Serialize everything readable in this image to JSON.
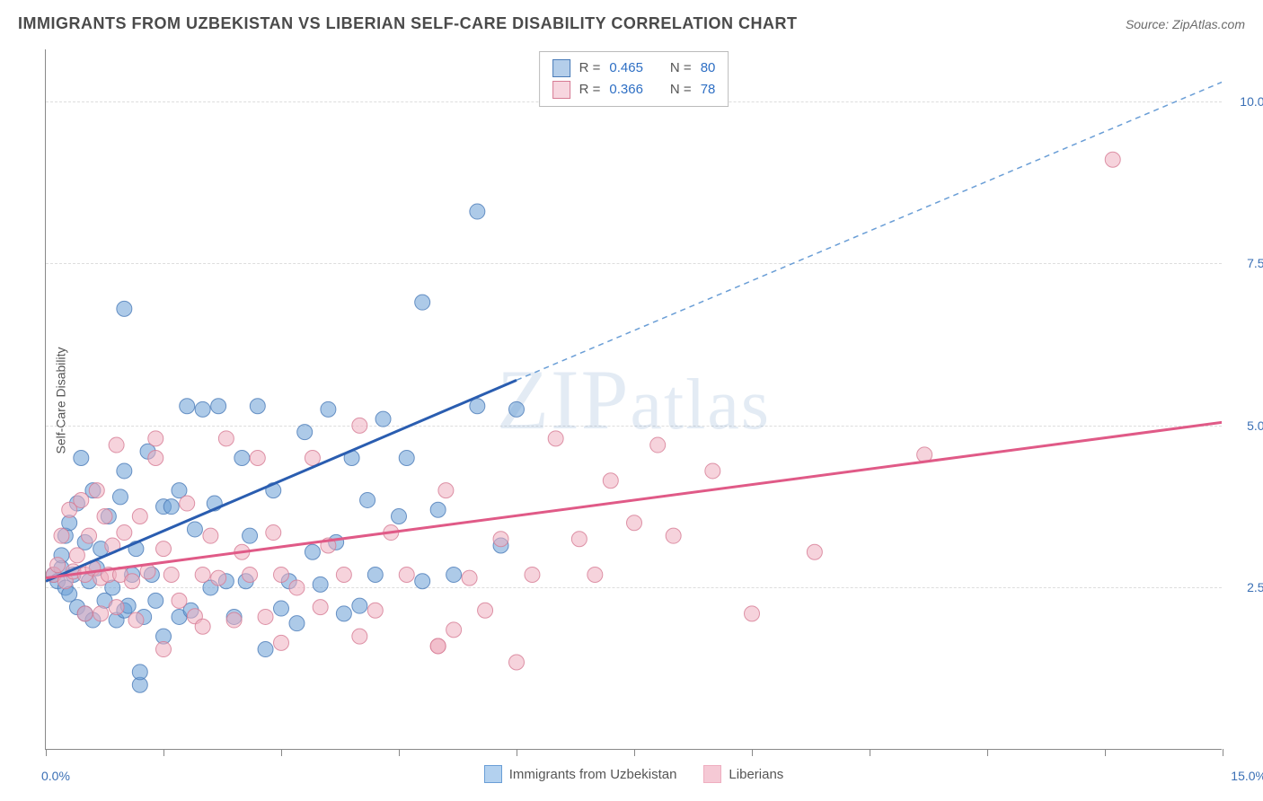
{
  "title": "IMMIGRANTS FROM UZBEKISTAN VS LIBERIAN SELF-CARE DISABILITY CORRELATION CHART",
  "source_prefix": "Source: ",
  "source_name": "ZipAtlas.com",
  "ylabel": "Self-Care Disability",
  "watermark": "ZIPatlas",
  "chart": {
    "type": "scatter",
    "xlim": [
      0,
      15
    ],
    "ylim": [
      0,
      10.8
    ],
    "xticks": [
      0,
      1.5,
      3.0,
      4.5,
      6.0,
      7.5,
      9.0,
      10.5,
      12.0,
      13.5,
      15.0
    ],
    "ytick_labels": [
      {
        "y": 2.5,
        "label": "2.5%"
      },
      {
        "y": 5.0,
        "label": "5.0%"
      },
      {
        "y": 7.5,
        "label": "7.5%"
      },
      {
        "y": 10.0,
        "label": "10.0%"
      }
    ],
    "origin_label": "0.0%",
    "xmax_label": "15.0%",
    "background_color": "#ffffff",
    "grid_color": "#dddddd",
    "marker_radius": 8.5,
    "marker_opacity": 0.55,
    "series": [
      {
        "name": "Immigrants from Uzbekistan",
        "color": "#6a9ed6",
        "stroke": "#4a7bb8",
        "R": "0.465",
        "N": "80",
        "regression": {
          "solid_from": [
            0,
            2.6
          ],
          "solid_to": [
            6.0,
            5.7
          ],
          "dash_to": [
            15.0,
            10.3
          ],
          "solid_color": "#2a5db0",
          "solid_width": 3,
          "dash_color": "#6a9ed6",
          "dash_width": 1.5
        },
        "points": [
          [
            0.1,
            2.7
          ],
          [
            0.15,
            2.6
          ],
          [
            0.2,
            2.8
          ],
          [
            0.2,
            3.0
          ],
          [
            0.25,
            2.5
          ],
          [
            0.25,
            3.3
          ],
          [
            0.3,
            2.4
          ],
          [
            0.3,
            3.5
          ],
          [
            0.35,
            2.7
          ],
          [
            0.4,
            2.2
          ],
          [
            0.4,
            3.8
          ],
          [
            0.45,
            4.5
          ],
          [
            0.5,
            2.1
          ],
          [
            0.5,
            3.2
          ],
          [
            0.55,
            2.6
          ],
          [
            0.6,
            2.0
          ],
          [
            0.6,
            4.0
          ],
          [
            0.65,
            2.8
          ],
          [
            1.0,
            6.8
          ],
          [
            0.7,
            3.1
          ],
          [
            0.75,
            2.3
          ],
          [
            0.8,
            3.6
          ],
          [
            0.85,
            2.5
          ],
          [
            0.9,
            2.0
          ],
          [
            0.95,
            3.9
          ],
          [
            1.0,
            2.15
          ],
          [
            1.0,
            4.3
          ],
          [
            1.05,
            2.22
          ],
          [
            1.1,
            2.7
          ],
          [
            1.15,
            3.1
          ],
          [
            1.2,
            1.0
          ],
          [
            1.2,
            1.2
          ],
          [
            1.25,
            2.05
          ],
          [
            1.3,
            4.6
          ],
          [
            1.35,
            2.7
          ],
          [
            1.4,
            2.3
          ],
          [
            1.5,
            3.75
          ],
          [
            1.5,
            1.75
          ],
          [
            1.6,
            3.75
          ],
          [
            1.7,
            2.05
          ],
          [
            1.7,
            4.0
          ],
          [
            1.8,
            5.3
          ],
          [
            1.85,
            2.15
          ],
          [
            1.9,
            3.4
          ],
          [
            2.0,
            5.25
          ],
          [
            2.1,
            2.5
          ],
          [
            2.15,
            3.8
          ],
          [
            2.2,
            5.3
          ],
          [
            2.3,
            2.6
          ],
          [
            2.4,
            2.05
          ],
          [
            2.5,
            4.5
          ],
          [
            2.55,
            2.6
          ],
          [
            2.6,
            3.3
          ],
          [
            2.7,
            5.3
          ],
          [
            2.8,
            1.55
          ],
          [
            2.9,
            4.0
          ],
          [
            3.0,
            2.18
          ],
          [
            3.1,
            2.6
          ],
          [
            3.2,
            1.95
          ],
          [
            3.3,
            4.9
          ],
          [
            3.4,
            3.05
          ],
          [
            3.5,
            2.55
          ],
          [
            3.6,
            5.25
          ],
          [
            3.7,
            3.2
          ],
          [
            3.8,
            2.1
          ],
          [
            3.9,
            4.5
          ],
          [
            4.0,
            2.22
          ],
          [
            4.1,
            3.85
          ],
          [
            4.2,
            2.7
          ],
          [
            4.3,
            5.1
          ],
          [
            4.5,
            3.6
          ],
          [
            4.6,
            4.5
          ],
          [
            4.8,
            6.9
          ],
          [
            4.8,
            2.6
          ],
          [
            5.0,
            3.7
          ],
          [
            5.2,
            2.7
          ],
          [
            5.5,
            5.3
          ],
          [
            5.5,
            8.3
          ],
          [
            5.8,
            3.15
          ],
          [
            6.0,
            5.25
          ]
        ]
      },
      {
        "name": "Liberians",
        "color": "#efaec0",
        "stroke": "#d67b94",
        "R": "0.366",
        "N": "78",
        "regression": {
          "solid_from": [
            0,
            2.65
          ],
          "solid_to": [
            15.0,
            5.05
          ],
          "dash_to": null,
          "solid_color": "#e05a87",
          "solid_width": 3
        },
        "points": [
          [
            0.1,
            2.7
          ],
          [
            0.15,
            2.85
          ],
          [
            0.2,
            3.3
          ],
          [
            0.25,
            2.6
          ],
          [
            0.3,
            3.7
          ],
          [
            0.35,
            2.75
          ],
          [
            0.4,
            3.0
          ],
          [
            0.45,
            3.85
          ],
          [
            0.5,
            2.7
          ],
          [
            0.5,
            2.1
          ],
          [
            0.55,
            3.3
          ],
          [
            0.6,
            2.8
          ],
          [
            0.65,
            4.0
          ],
          [
            0.7,
            2.65
          ],
          [
            0.7,
            2.1
          ],
          [
            0.75,
            3.6
          ],
          [
            0.8,
            2.7
          ],
          [
            0.85,
            3.15
          ],
          [
            0.9,
            2.2
          ],
          [
            0.9,
            4.7
          ],
          [
            0.95,
            2.7
          ],
          [
            1.0,
            3.35
          ],
          [
            1.1,
            2.6
          ],
          [
            1.15,
            2.0
          ],
          [
            1.2,
            3.6
          ],
          [
            1.3,
            2.75
          ],
          [
            1.4,
            4.5
          ],
          [
            1.4,
            4.8
          ],
          [
            1.5,
            3.1
          ],
          [
            1.5,
            1.55
          ],
          [
            1.6,
            2.7
          ],
          [
            1.7,
            2.3
          ],
          [
            1.8,
            3.8
          ],
          [
            1.9,
            2.06
          ],
          [
            2.0,
            2.7
          ],
          [
            2.0,
            1.9
          ],
          [
            2.1,
            3.3
          ],
          [
            2.2,
            2.65
          ],
          [
            2.3,
            4.8
          ],
          [
            2.4,
            2.0
          ],
          [
            2.5,
            3.05
          ],
          [
            2.6,
            2.7
          ],
          [
            2.7,
            4.5
          ],
          [
            2.8,
            2.05
          ],
          [
            2.9,
            3.35
          ],
          [
            3.0,
            1.65
          ],
          [
            3.0,
            2.7
          ],
          [
            3.2,
            2.5
          ],
          [
            3.4,
            4.5
          ],
          [
            3.5,
            2.2
          ],
          [
            3.6,
            3.15
          ],
          [
            3.8,
            2.7
          ],
          [
            4.0,
            5.0
          ],
          [
            4.0,
            1.75
          ],
          [
            4.2,
            2.15
          ],
          [
            4.4,
            3.35
          ],
          [
            4.6,
            2.7
          ],
          [
            5.0,
            1.6
          ],
          [
            5.0,
            1.6
          ],
          [
            5.1,
            4.0
          ],
          [
            5.2,
            1.85
          ],
          [
            5.4,
            2.65
          ],
          [
            5.6,
            2.15
          ],
          [
            5.8,
            3.25
          ],
          [
            6.0,
            1.35
          ],
          [
            6.2,
            2.7
          ],
          [
            6.5,
            4.8
          ],
          [
            6.8,
            3.25
          ],
          [
            7.0,
            2.7
          ],
          [
            7.2,
            4.15
          ],
          [
            7.5,
            3.5
          ],
          [
            7.8,
            4.7
          ],
          [
            8.0,
            3.3
          ],
          [
            8.5,
            4.3
          ],
          [
            9.0,
            2.1
          ],
          [
            9.8,
            3.05
          ],
          [
            11.2,
            4.55
          ],
          [
            13.6,
            9.1
          ]
        ]
      }
    ]
  },
  "legend_top": {
    "R_label": "R =",
    "N_label": "N ="
  },
  "legend_bottom": [
    {
      "label": "Immigrants from Uzbekistan",
      "fill": "#b3d1ef",
      "stroke": "#6a9ed6"
    },
    {
      "label": "Liberians",
      "fill": "#f5c9d5",
      "stroke": "#efaec0"
    }
  ]
}
